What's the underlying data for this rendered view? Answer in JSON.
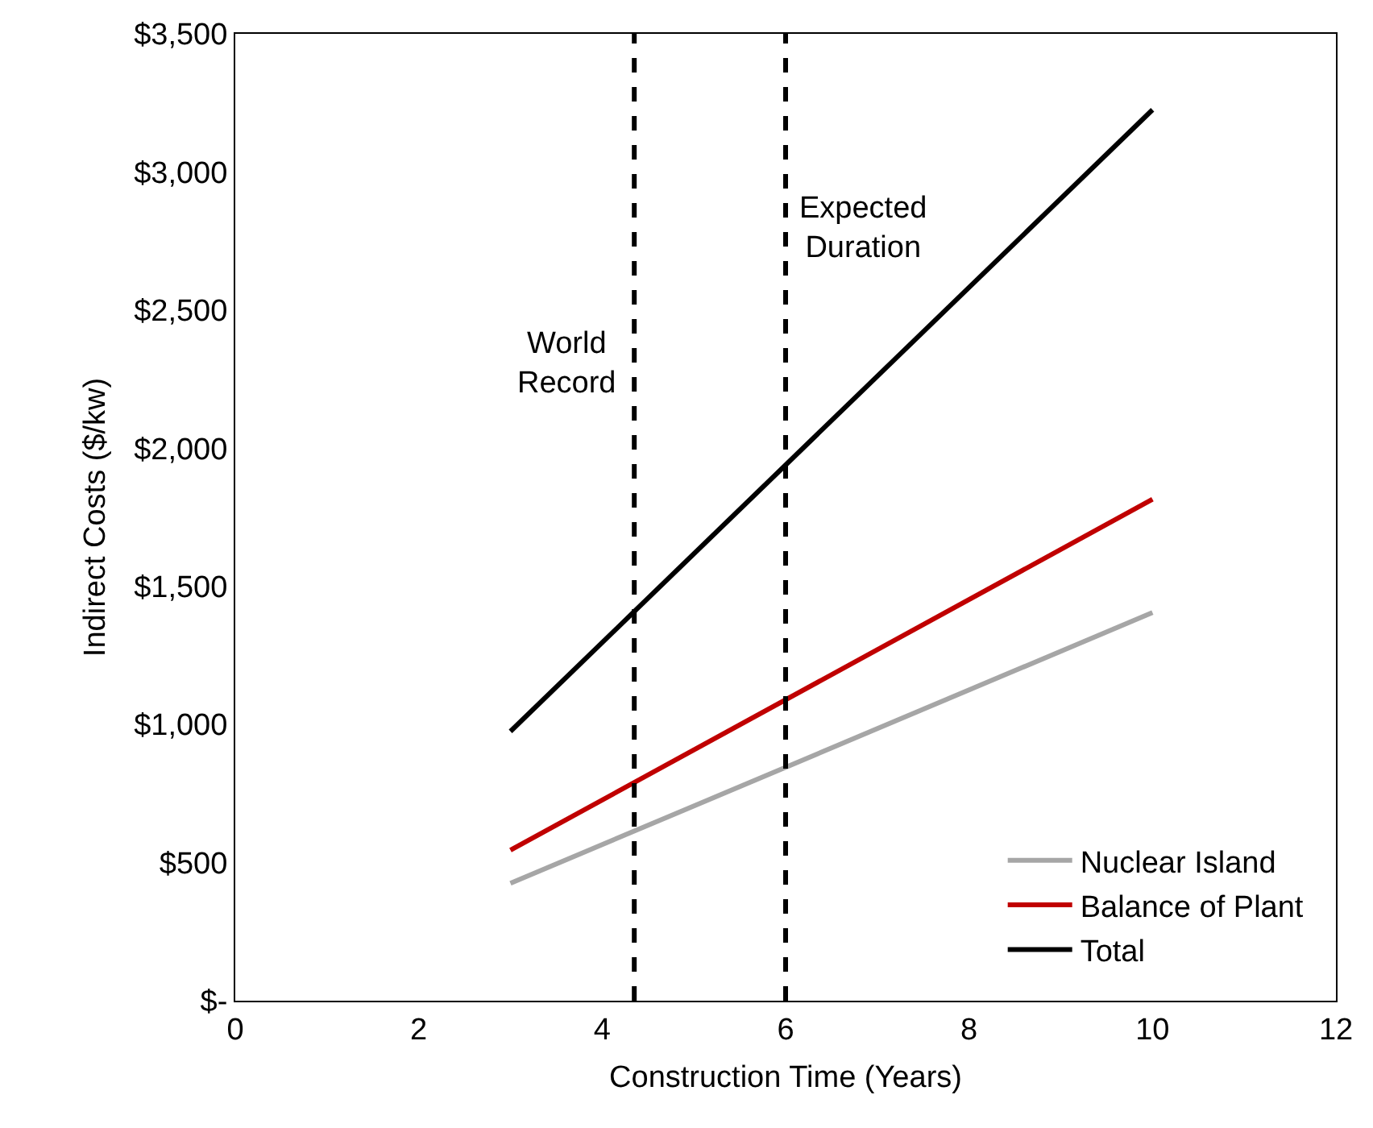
{
  "chart_data": {
    "type": "line",
    "xlabel": "Construction Time (Years)",
    "ylabel": "Indirect Costs ($/kw)",
    "xlim": [
      0,
      12
    ],
    "xticks": [
      0,
      2,
      4,
      6,
      8,
      10,
      12
    ],
    "ylim": [
      0,
      3500
    ],
    "yticks": [
      {
        "value": 0,
        "label": "$-"
      },
      {
        "value": 500,
        "label": "$500"
      },
      {
        "value": 1000,
        "label": "$1,000"
      },
      {
        "value": 1500,
        "label": "$1,500"
      },
      {
        "value": 2000,
        "label": "$2,000"
      },
      {
        "value": 2500,
        "label": "$2,500"
      },
      {
        "value": 3000,
        "label": "$3,000"
      },
      {
        "value": 3500,
        "label": "$3,500"
      }
    ],
    "x": [
      3,
      10
    ],
    "grid": false,
    "legend": "bottom right",
    "marker": "none",
    "line_style": "solid",
    "series": [
      {
        "name": "Nuclear Island",
        "color": "#a6a6a6",
        "values": [
          425,
          1405
        ]
      },
      {
        "name": "Balance of Plant",
        "color": "#c00000",
        "values": [
          545,
          1815
        ]
      },
      {
        "name": "Total",
        "color": "#000000",
        "values": [
          975,
          3225
        ]
      }
    ],
    "ref_lines": [
      {
        "axis": "x",
        "value": 4.35,
        "label": "World Record",
        "color": "#000000",
        "line_style": "dashed"
      },
      {
        "axis": "x",
        "value": 6,
        "label": "Expected Duration",
        "color": "#000000",
        "line_style": "dashed"
      }
    ]
  }
}
